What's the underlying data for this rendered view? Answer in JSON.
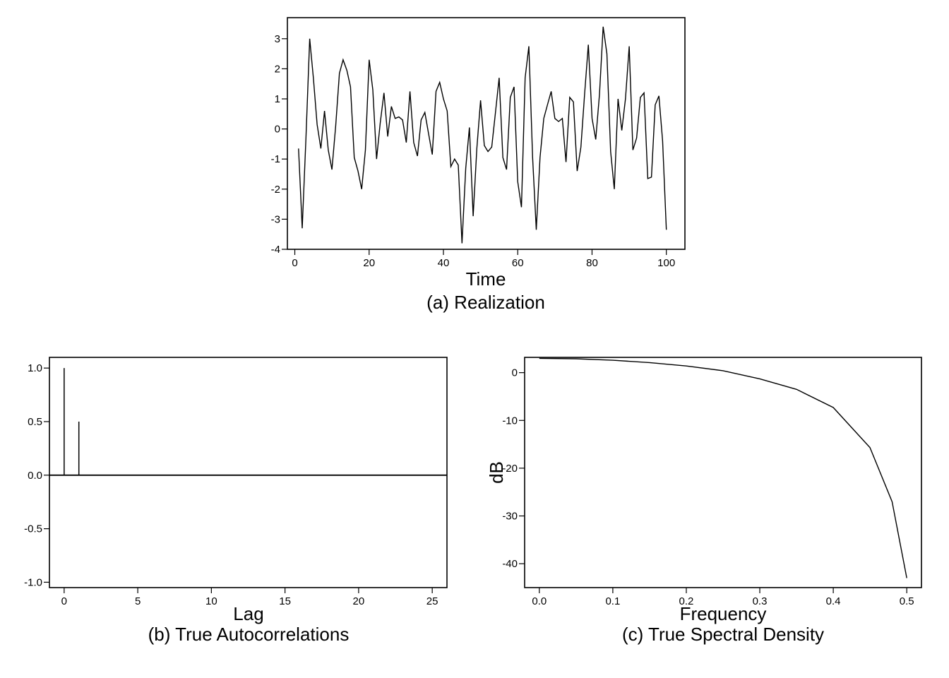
{
  "chart_data": [
    {
      "id": "realization",
      "type": "line",
      "caption": "(a) Realization",
      "xlabel": "Time",
      "ylabel": "",
      "xlim": [
        -2,
        105
      ],
      "ylim": [
        -4,
        3.7
      ],
      "xticks": [
        0,
        20,
        40,
        60,
        80,
        100
      ],
      "yticks": [
        3,
        2,
        1,
        0,
        -1,
        -2,
        -3,
        -4
      ],
      "x": [
        1,
        2,
        3,
        4,
        5,
        6,
        7,
        8,
        9,
        10,
        11,
        12,
        13,
        14,
        15,
        16,
        17,
        18,
        19,
        20,
        21,
        22,
        23,
        24,
        25,
        26,
        27,
        28,
        29,
        30,
        31,
        32,
        33,
        34,
        35,
        36,
        37,
        38,
        39,
        40,
        41,
        42,
        43,
        44,
        45,
        46,
        47,
        48,
        49,
        50,
        51,
        52,
        53,
        54,
        55,
        56,
        57,
        58,
        59,
        60,
        61,
        62,
        63,
        64,
        65,
        66,
        67,
        68,
        69,
        70,
        71,
        72,
        73,
        74,
        75,
        76,
        77,
        78,
        79,
        80,
        81,
        82,
        83,
        84,
        85,
        86,
        87,
        88,
        89,
        90,
        91,
        92,
        93,
        94,
        95,
        96,
        97,
        98,
        99,
        100
      ],
      "y": [
        -0.65,
        -3.3,
        -0.3,
        3.0,
        1.7,
        0.15,
        -0.65,
        0.6,
        -0.7,
        -1.35,
        0.1,
        1.85,
        2.3,
        1.95,
        1.4,
        -0.95,
        -1.4,
        -2.0,
        -0.7,
        2.3,
        1.3,
        -1.0,
        0.2,
        1.2,
        -0.25,
        0.75,
        0.35,
        0.4,
        0.3,
        -0.45,
        1.25,
        -0.45,
        -0.9,
        0.3,
        0.55,
        -0.15,
        -0.85,
        1.25,
        1.55,
        1.0,
        0.6,
        -1.25,
        -1.0,
        -1.2,
        -3.8,
        -1.3,
        0.05,
        -2.9,
        -0.65,
        0.95,
        -0.55,
        -0.75,
        -0.6,
        0.55,
        1.7,
        -0.95,
        -1.35,
        1.05,
        1.4,
        -1.75,
        -2.6,
        1.7,
        2.75,
        -0.95,
        -3.35,
        -0.95,
        0.35,
        0.8,
        1.25,
        0.35,
        0.25,
        0.35,
        -1.1,
        1.05,
        0.9,
        -1.4,
        -0.6,
        1.15,
        2.8,
        0.35,
        -0.35,
        1.15,
        3.4,
        2.5,
        -0.75,
        -2.0,
        1.0,
        -0.05,
        1.0,
        2.75,
        -0.7,
        -0.3,
        1.05,
        1.2,
        -1.65,
        -1.6,
        0.8,
        1.1,
        -0.4,
        -3.35
      ]
    },
    {
      "id": "autocorrelations",
      "type": "bar",
      "caption": "(b) True Autocorrelations",
      "xlabel": "Lag",
      "ylabel": "",
      "xlim": [
        -1,
        26
      ],
      "ylim": [
        -1.05,
        1.1
      ],
      "xticks": [
        0,
        5,
        10,
        15,
        20,
        25
      ],
      "yticks": [
        "1.0",
        "0.5",
        "0.0",
        "-0.5",
        "-1.0"
      ],
      "lags": [
        0,
        1,
        2,
        3,
        4,
        5,
        6,
        7,
        8,
        9,
        10,
        11,
        12,
        13,
        14,
        15,
        16,
        17,
        18,
        19,
        20,
        21,
        22,
        23,
        24,
        25,
        26
      ],
      "values": [
        1.0,
        0.5,
        0,
        0,
        0,
        0,
        0,
        0,
        0,
        0,
        0,
        0,
        0,
        0,
        0,
        0,
        0,
        0,
        0,
        0,
        0,
        0,
        0,
        0,
        0,
        0,
        0
      ]
    },
    {
      "id": "spectral-density",
      "type": "line",
      "caption": "(c) True Spectral Density",
      "xlabel": "Frequency",
      "ylabel": "dB",
      "xlim": [
        -0.02,
        0.52
      ],
      "ylim": [
        -45,
        3.2
      ],
      "xticks": [
        "0.0",
        "0.1",
        "0.2",
        "0.3",
        "0.4",
        "0.5"
      ],
      "yticks": [
        "0",
        "-10",
        "-20",
        "-30",
        "-40"
      ],
      "x": [
        0,
        0.05,
        0.1,
        0.15,
        0.2,
        0.25,
        0.3,
        0.35,
        0.4,
        0.45,
        0.48,
        0.5
      ],
      "y": [
        3.0,
        2.9,
        2.6,
        2.1,
        1.4,
        0.4,
        -1.3,
        -3.5,
        -7.3,
        -15.7,
        -27,
        -43
      ]
    }
  ]
}
